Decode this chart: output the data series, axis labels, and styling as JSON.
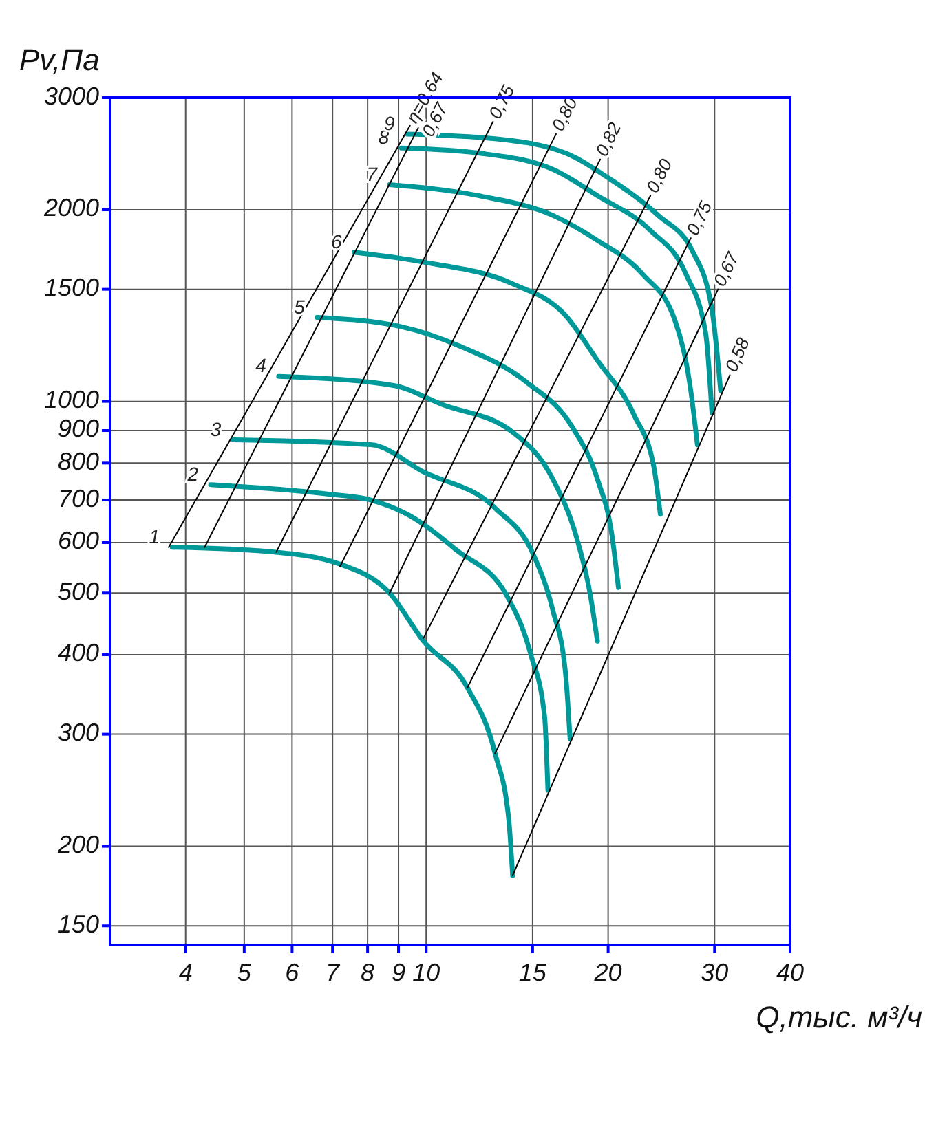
{
  "chart_data": {
    "type": "line",
    "xlabel": "Q,тыс. м³/ч",
    "ylabel": "Pv,Па",
    "log": "xy",
    "grid": true,
    "xlim": [
      3,
      40
    ],
    "xticks": [
      4,
      5,
      6,
      7,
      8,
      9,
      10,
      15,
      20,
      30,
      40
    ],
    "ylim": [
      140,
      3000
    ],
    "yticks": [
      150,
      200,
      300,
      400,
      500,
      600,
      700,
      800,
      900,
      1000,
      1500,
      2000,
      3000
    ],
    "series": [
      {
        "name": "1",
        "color": "#009999",
        "x": [
          3.8,
          5.6,
          7.2,
          8.7,
          9.9,
          11.7,
          13,
          13.7,
          13.9
        ],
        "values": [
          590,
          580,
          555,
          500,
          420,
          355,
          280,
          220,
          180
        ]
      },
      {
        "name": "2",
        "color": "#009999",
        "x": [
          4.4,
          6.9,
          8.1,
          9.3,
          11.2,
          13.6,
          14.9,
          15.7,
          15.9
        ],
        "values": [
          740,
          715,
          700,
          665,
          585,
          495,
          400,
          320,
          245
        ]
      },
      {
        "name": "3",
        "color": "#009999",
        "x": [
          4.8,
          8.1,
          9.9,
          13,
          15.1,
          16.2,
          17,
          17.3
        ],
        "values": [
          870,
          855,
          775,
          680,
          570,
          470,
          375,
          295
        ]
      },
      {
        "name": "4",
        "color": "#009999",
        "x": [
          5.7,
          8.8,
          10.6,
          13.9,
          16.2,
          17.7,
          18.7,
          19.2
        ],
        "values": [
          1095,
          1060,
          990,
          895,
          755,
          615,
          495,
          420
        ]
      },
      {
        "name": "5",
        "color": "#009999",
        "x": [
          6.6,
          9.1,
          11.4,
          14.7,
          17.4,
          19.2,
          20.3,
          20.8
        ],
        "values": [
          1355,
          1310,
          1220,
          1070,
          915,
          755,
          615,
          510
        ]
      },
      {
        "name": "6",
        "color": "#009999",
        "x": [
          7.6,
          9.9,
          13.9,
          17,
          19.2,
          22.1,
          23.8,
          24.4
        ],
        "values": [
          1715,
          1655,
          1530,
          1365,
          1160,
          950,
          790,
          665
        ]
      },
      {
        "name": "7",
        "color": "#009999",
        "x": [
          8.7,
          12.2,
          16.2,
          19.2,
          22.8,
          25.8,
          27.4,
          28.1
        ],
        "values": [
          2190,
          2105,
          1960,
          1790,
          1585,
          1340,
          1040,
          855
        ]
      },
      {
        "name": "8",
        "color": "#009999",
        "x": [
          9.1,
          12.2,
          16.2,
          19.2,
          23.5,
          26.9,
          29,
          29.7
        ],
        "values": [
          2500,
          2455,
          2315,
          2105,
          1855,
          1585,
          1280,
          960
        ]
      },
      {
        "name": "9",
        "color": "#009999",
        "x": [
          9.3,
          13,
          17,
          20,
          24.2,
          27.6,
          29.7,
          30.7
        ],
        "values": [
          2630,
          2585,
          2455,
          2245,
          1960,
          1720,
          1395,
          1040
        ]
      },
      {
        "name": "η=0,64",
        "color": "#000000",
        "x": [
          3.75,
          9.4
        ],
        "values": [
          590,
          2710
        ]
      },
      {
        "name": "0,67",
        "color": "#000000",
        "x": [
          4.3,
          9.7
        ],
        "values": [
          590,
          2690
        ]
      },
      {
        "name": "0,75",
        "color": "#000000",
        "x": [
          5.65,
          12.9
        ],
        "values": [
          580,
          2750
        ]
      },
      {
        "name": "0,80",
        "color": "#000000",
        "x": [
          7.2,
          16.4
        ],
        "values": [
          550,
          2630
        ]
      },
      {
        "name": "0,82",
        "color": "#000000",
        "x": [
          8.7,
          19.4
        ],
        "values": [
          500,
          2400
        ]
      },
      {
        "name": "0,80",
        "color": "#000000",
        "x": [
          9.9,
          23.5
        ],
        "values": [
          425,
          2105
        ]
      },
      {
        "name": "0,75",
        "color": "#000000",
        "x": [
          11.7,
          27.4
        ],
        "values": [
          355,
          1805
        ]
      },
      {
        "name": "0,67",
        "color": "#000000",
        "x": [
          13,
          30.4
        ],
        "values": [
          280,
          1500
        ]
      },
      {
        "name": "0,58",
        "color": "#000000",
        "x": [
          13.9,
          31.8
        ],
        "values": [
          180,
          1100
        ]
      }
    ]
  }
}
